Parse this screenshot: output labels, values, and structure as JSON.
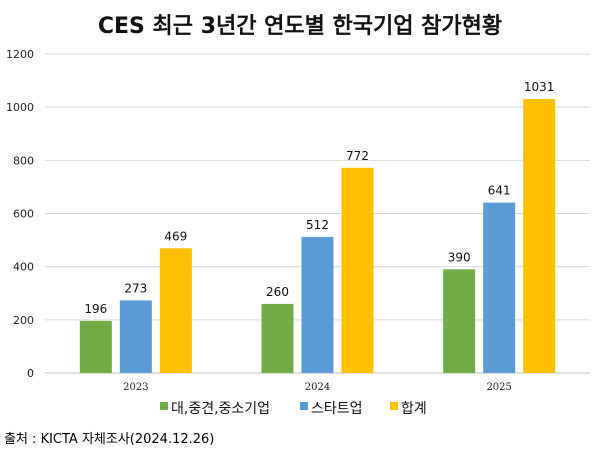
{
  "chart_data": {
    "type": "bar",
    "title": "CES 최근 3년간 연도별 한국기업 참가현황",
    "categories": [
      "2023",
      "2024",
      "2025"
    ],
    "series": [
      {
        "name": "대,중견,중소기업",
        "values": [
          196,
          260,
          390
        ],
        "color": "#70ad47"
      },
      {
        "name": "스타트업",
        "values": [
          273,
          512,
          641
        ],
        "color": "#5b9bd5"
      },
      {
        "name": "합계",
        "values": [
          469,
          772,
          1031
        ],
        "color": "#ffc000"
      }
    ],
    "ylim": [
      0,
      1200
    ],
    "yticks": [
      0,
      200,
      400,
      600,
      800,
      1000,
      1200
    ],
    "grid": true,
    "legend": "bottom",
    "source": "출처 : KICTA 자체조사(2024.12.26)"
  }
}
